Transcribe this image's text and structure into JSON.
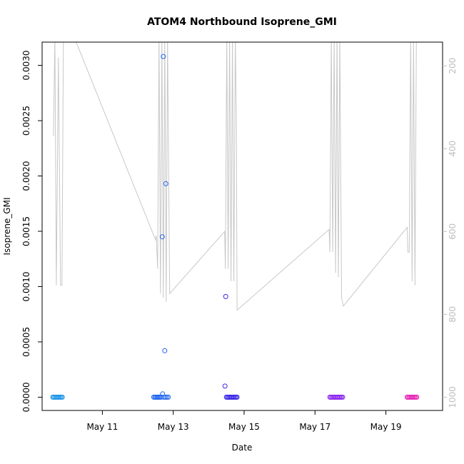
{
  "chart_data": {
    "type": "scatter",
    "title": "ATOM4 Northbound Isoprene_GMI",
    "xlabel": "Date",
    "ylabel": "Isoprene_GMI",
    "xlim": [
      9.3,
      20.6
    ],
    "ylim": [
      -0.00012,
      0.00321
    ],
    "x_ticks": [
      11,
      13,
      15,
      17,
      19
    ],
    "x_tick_labels": [
      "May 11",
      "May 13",
      "May 15",
      "May 17",
      "May 19"
    ],
    "y_ticks": [
      0.0,
      0.0005,
      0.001,
      0.0015,
      0.002,
      0.0025,
      0.003
    ],
    "y_tick_labels": [
      "0.0000",
      "0.0005",
      "0.0010",
      "0.0015",
      "0.0020",
      "0.0025",
      "0.0030"
    ],
    "secondary_y": {
      "reversed": true,
      "ylim": [
        1032,
        143
      ],
      "ticks": [
        200,
        400,
        600,
        800,
        1000
      ],
      "tick_labels": [
        "200",
        "400",
        "600",
        "800",
        "1000"
      ],
      "color": "#bdbdbd"
    },
    "points": [
      {
        "x": 9.6,
        "y": 0.0,
        "color": "#1e96e6"
      },
      {
        "x": 9.63,
        "y": 0.0,
        "color": "#1e96e6"
      },
      {
        "x": 9.66,
        "y": 0.0,
        "color": "#1e96e6"
      },
      {
        "x": 9.69,
        "y": 0.0,
        "color": "#1e96e6"
      },
      {
        "x": 9.72,
        "y": 0.0,
        "color": "#1e96e6"
      },
      {
        "x": 9.75,
        "y": 0.0,
        "color": "#1e96e6"
      },
      {
        "x": 9.78,
        "y": 0.0,
        "color": "#1e96e6"
      },
      {
        "x": 9.81,
        "y": 0.0,
        "color": "#1e96e6"
      },
      {
        "x": 9.84,
        "y": 0.0,
        "color": "#1e96e6"
      },
      {
        "x": 9.87,
        "y": 0.0,
        "color": "#1e96e6"
      },
      {
        "x": 12.45,
        "y": 0.0,
        "color": "#1e64f0"
      },
      {
        "x": 12.48,
        "y": 0.0,
        "color": "#1e64f0"
      },
      {
        "x": 12.51,
        "y": 0.0,
        "color": "#1e64f0"
      },
      {
        "x": 12.54,
        "y": 0.0,
        "color": "#1e64f0"
      },
      {
        "x": 12.57,
        "y": 0.0,
        "color": "#1e64f0"
      },
      {
        "x": 12.6,
        "y": 0.0,
        "color": "#1e64f0"
      },
      {
        "x": 12.63,
        "y": 0.0,
        "color": "#1e64f0"
      },
      {
        "x": 12.66,
        "y": 0.0,
        "color": "#1e64f0"
      },
      {
        "x": 12.7,
        "y": 3e-05,
        "color": "#1e64f0"
      },
      {
        "x": 12.74,
        "y": 0.0,
        "color": "#1e64f0"
      },
      {
        "x": 12.78,
        "y": 0.0,
        "color": "#1e64f0"
      },
      {
        "x": 12.82,
        "y": 0.0,
        "color": "#1e64f0"
      },
      {
        "x": 12.86,
        "y": 0.0,
        "color": "#1e64f0"
      },
      {
        "x": 12.72,
        "y": 0.00308,
        "color": "#1e64f0"
      },
      {
        "x": 12.79,
        "y": 0.00193,
        "color": "#1e64f0"
      },
      {
        "x": 12.69,
        "y": 0.00145,
        "color": "#1e64f0"
      },
      {
        "x": 12.76,
        "y": 0.00042,
        "color": "#1e64f0"
      },
      {
        "x": 14.48,
        "y": 0.00091,
        "color": "#3c28e6"
      },
      {
        "x": 14.46,
        "y": 0.0001,
        "color": "#3c28e6"
      },
      {
        "x": 14.5,
        "y": 0.0,
        "color": "#3c28e6"
      },
      {
        "x": 14.53,
        "y": 0.0,
        "color": "#3c28e6"
      },
      {
        "x": 14.56,
        "y": 0.0,
        "color": "#3c28e6"
      },
      {
        "x": 14.59,
        "y": 0.0,
        "color": "#3c28e6"
      },
      {
        "x": 14.62,
        "y": 0.0,
        "color": "#3c28e6"
      },
      {
        "x": 14.65,
        "y": 0.0,
        "color": "#3c28e6"
      },
      {
        "x": 14.68,
        "y": 0.0,
        "color": "#3c28e6"
      },
      {
        "x": 14.71,
        "y": 0.0,
        "color": "#3c28e6"
      },
      {
        "x": 14.74,
        "y": 0.0,
        "color": "#3c28e6"
      },
      {
        "x": 14.77,
        "y": 0.0,
        "color": "#3c28e6"
      },
      {
        "x": 14.8,
        "y": 0.0,
        "color": "#3c28e6"
      },
      {
        "x": 17.42,
        "y": 0.0,
        "color": "#8c28f0"
      },
      {
        "x": 17.45,
        "y": 0.0,
        "color": "#8c28f0"
      },
      {
        "x": 17.48,
        "y": 0.0,
        "color": "#8c28f0"
      },
      {
        "x": 17.51,
        "y": 0.0,
        "color": "#8c28f0"
      },
      {
        "x": 17.54,
        "y": 0.0,
        "color": "#8c28f0"
      },
      {
        "x": 17.57,
        "y": 0.0,
        "color": "#8c28f0"
      },
      {
        "x": 17.6,
        "y": 0.0,
        "color": "#8c28f0"
      },
      {
        "x": 17.63,
        "y": 0.0,
        "color": "#8c28f0"
      },
      {
        "x": 17.66,
        "y": 0.0,
        "color": "#8c28f0"
      },
      {
        "x": 17.69,
        "y": 0.0,
        "color": "#8c28f0"
      },
      {
        "x": 17.72,
        "y": 0.0,
        "color": "#8c28f0"
      },
      {
        "x": 17.75,
        "y": 0.0,
        "color": "#8c28f0"
      },
      {
        "x": 17.78,
        "y": 0.0,
        "color": "#8c28f0"
      },
      {
        "x": 19.6,
        "y": 0.0,
        "color": "#e628b4"
      },
      {
        "x": 19.63,
        "y": 0.0,
        "color": "#e628b4"
      },
      {
        "x": 19.66,
        "y": 0.0,
        "color": "#e628b4"
      },
      {
        "x": 19.69,
        "y": 0.0,
        "color": "#e628b4"
      },
      {
        "x": 19.72,
        "y": 0.0,
        "color": "#e628b4"
      },
      {
        "x": 19.75,
        "y": 0.0,
        "color": "#e628b4"
      },
      {
        "x": 19.78,
        "y": 0.0,
        "color": "#e628b4"
      },
      {
        "x": 19.81,
        "y": 0.0,
        "color": "#e628b4"
      },
      {
        "x": 19.84,
        "y": 0.0,
        "color": "#e628b4"
      },
      {
        "x": 19.87,
        "y": 0.0,
        "color": "#e628b4"
      }
    ],
    "pressure_line": {
      "color": "#c8c8c8",
      "x": [
        9.62,
        9.66,
        9.7,
        9.76,
        9.82,
        9.86,
        9.9,
        10.0,
        10.2,
        12.5,
        12.52,
        12.56,
        12.6,
        12.64,
        12.68,
        12.72,
        12.76,
        12.8,
        12.84,
        12.9,
        14.45,
        14.47,
        14.51,
        14.55,
        14.59,
        14.63,
        14.67,
        14.71,
        14.75,
        14.78,
        14.8,
        17.4,
        17.42,
        17.46,
        17.5,
        17.54,
        17.58,
        17.62,
        17.66,
        17.7,
        17.75,
        17.8,
        19.6,
        19.62,
        19.66,
        19.7,
        19.74,
        19.78,
        19.82,
        19.86
      ],
      "y": [
        370,
        130,
        730,
        180,
        730,
        730,
        130,
        130,
        130,
        620,
        610,
        690,
        130,
        750,
        130,
        760,
        130,
        770,
        130,
        750,
        600,
        690,
        130,
        690,
        130,
        720,
        130,
        720,
        130,
        330,
        790,
        595,
        650,
        130,
        650,
        130,
        700,
        130,
        710,
        130,
        760,
        780,
        590,
        650,
        650,
        130,
        720,
        130,
        730,
        130
      ]
    }
  }
}
